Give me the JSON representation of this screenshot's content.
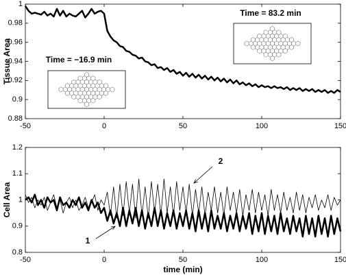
{
  "chart_data": [
    {
      "type": "line",
      "ylabel": "Tissue Area",
      "xlim": [
        -50,
        150
      ],
      "ylim": [
        0.88,
        1
      ],
      "xticks": [
        -50,
        0,
        50,
        100,
        150
      ],
      "yticks": [
        0.88,
        0.9,
        0.92,
        0.94,
        0.96,
        0.98,
        1
      ],
      "annotations": [
        "Time = −16.9 min",
        "Time = 83.2 min"
      ],
      "x": [
        -50,
        -48,
        -46,
        -44,
        -42,
        -40,
        -38,
        -36,
        -34,
        -32,
        -30,
        -28,
        -26,
        -24,
        -22,
        -20,
        -18,
        -16,
        -14,
        -12,
        -10,
        -8,
        -6,
        -4,
        -2,
        0,
        2,
        4,
        6,
        8,
        10,
        12,
        14,
        16,
        18,
        20,
        22,
        24,
        26,
        28,
        30,
        32,
        34,
        36,
        38,
        40,
        42,
        44,
        46,
        48,
        50,
        52,
        54,
        56,
        58,
        60,
        62,
        64,
        66,
        68,
        70,
        72,
        74,
        76,
        78,
        80,
        82,
        84,
        86,
        88,
        90,
        92,
        94,
        96,
        98,
        100,
        102,
        104,
        106,
        108,
        110,
        112,
        114,
        116,
        118,
        120,
        122,
        124,
        126,
        128,
        130,
        132,
        134,
        136,
        138,
        140,
        142,
        144,
        146,
        148,
        150
      ],
      "series": [
        {
          "color": "#000000",
          "linewidth": 2.5,
          "values": [
            0.998,
            0.993,
            0.99,
            0.991,
            0.99,
            0.989,
            0.992,
            0.988,
            0.99,
            0.987,
            0.995,
            0.988,
            0.993,
            0.987,
            0.99,
            0.988,
            0.987,
            0.99,
            0.993,
            0.986,
            0.99,
            0.995,
            0.99,
            0.992,
            0.993,
            0.99,
            0.972,
            0.966,
            0.962,
            0.96,
            0.956,
            0.955,
            0.951,
            0.95,
            0.947,
            0.946,
            0.943,
            0.944,
            0.94,
            0.939,
            0.936,
            0.937,
            0.933,
            0.934,
            0.931,
            0.933,
            0.929,
            0.931,
            0.927,
            0.929,
            0.925,
            0.928,
            0.924,
            0.927,
            0.923,
            0.926,
            0.922,
            0.925,
            0.921,
            0.924,
            0.92,
            0.923,
            0.919,
            0.922,
            0.918,
            0.921,
            0.917,
            0.92,
            0.916,
            0.918,
            0.915,
            0.917,
            0.914,
            0.916,
            0.913,
            0.915,
            0.913,
            0.914,
            0.912,
            0.914,
            0.912,
            0.913,
            0.911,
            0.913,
            0.91,
            0.912,
            0.91,
            0.912,
            0.909,
            0.911,
            0.909,
            0.911,
            0.908,
            0.91,
            0.908,
            0.91,
            0.907,
            0.909,
            0.907,
            0.91,
            0.908
          ]
        }
      ]
    },
    {
      "type": "line",
      "ylabel": "Cell Area",
      "xlabel": "time (min)",
      "xlim": [
        -50,
        150
      ],
      "ylim": [
        0.8,
        1.2
      ],
      "xticks": [
        -50,
        0,
        50,
        100,
        150
      ],
      "yticks": [
        0.8,
        0.9,
        1,
        1.1,
        1.2
      ],
      "x": [
        -50,
        -48,
        -46,
        -44,
        -42,
        -40,
        -38,
        -36,
        -34,
        -32,
        -30,
        -28,
        -26,
        -24,
        -22,
        -20,
        -18,
        -16,
        -14,
        -12,
        -10,
        -8,
        -6,
        -4,
        -2,
        0,
        2,
        4,
        6,
        8,
        10,
        12,
        14,
        16,
        18,
        20,
        22,
        24,
        26,
        28,
        30,
        32,
        34,
        36,
        38,
        40,
        42,
        44,
        46,
        48,
        50,
        52,
        54,
        56,
        58,
        60,
        62,
        64,
        66,
        68,
        70,
        72,
        74,
        76,
        78,
        80,
        82,
        84,
        86,
        88,
        90,
        92,
        94,
        96,
        98,
        100,
        102,
        104,
        106,
        108,
        110,
        112,
        114,
        116,
        118,
        120,
        122,
        124,
        126,
        128,
        130,
        132,
        134,
        136,
        138,
        140,
        142,
        144,
        146,
        148,
        150
      ],
      "series": [
        {
          "name": "1",
          "color": "#000000",
          "linewidth": 2.5,
          "values": [
            1.0,
            1.01,
            0.99,
            1.02,
            0.98,
            1.0,
            0.97,
            1.01,
            0.99,
            1.0,
            0.96,
            1.01,
            0.98,
            0.99,
            0.97,
            1.0,
            0.98,
            1.01,
            0.97,
            0.99,
            0.96,
            1.0,
            0.97,
            0.99,
            0.95,
            0.97,
            0.92,
            0.96,
            0.91,
            0.95,
            0.9,
            0.97,
            0.9,
            0.96,
            0.91,
            0.97,
            0.9,
            0.96,
            0.89,
            0.95,
            0.9,
            0.97,
            0.9,
            0.96,
            0.89,
            0.95,
            0.9,
            0.96,
            0.89,
            0.95,
            0.9,
            0.96,
            0.89,
            0.95,
            0.88,
            0.96,
            0.89,
            0.95,
            0.88,
            0.96,
            0.89,
            0.94,
            0.89,
            0.95,
            0.88,
            0.94,
            0.89,
            0.95,
            0.88,
            0.94,
            0.89,
            0.95,
            0.87,
            0.94,
            0.88,
            0.95,
            0.87,
            0.94,
            0.88,
            0.94,
            0.87,
            0.95,
            0.88,
            0.93,
            0.87,
            0.94,
            0.88,
            0.93,
            0.86,
            0.94,
            0.87,
            0.93,
            0.86,
            0.94,
            0.87,
            0.93,
            0.86,
            0.94,
            0.87,
            0.93,
            0.88
          ]
        },
        {
          "name": "2",
          "color": "#000000",
          "linewidth": 0.8,
          "values": [
            1.02,
            0.99,
            1.01,
            0.97,
            1.0,
            0.98,
            1.01,
            0.96,
            0.99,
            1.02,
            0.97,
            1.0,
            0.95,
            0.99,
            1.01,
            0.97,
            1.0,
            0.96,
            0.98,
            1.01,
            0.97,
            0.99,
            1.02,
            0.96,
            1.0,
            0.98,
            1.03,
            0.94,
            1.05,
            0.93,
            1.06,
            0.94,
            1.07,
            0.95,
            1.06,
            0.93,
            1.08,
            0.94,
            1.05,
            0.93,
            1.07,
            0.95,
            1.06,
            0.94,
            1.08,
            0.95,
            1.05,
            0.94,
            1.07,
            0.96,
            1.05,
            0.95,
            1.06,
            0.94,
            1.04,
            0.95,
            1.05,
            0.94,
            1.03,
            0.96,
            1.05,
            0.95,
            1.03,
            0.94,
            1.05,
            0.96,
            1.03,
            0.95,
            1.04,
            0.94,
            1.02,
            0.96,
            1.04,
            0.95,
            1.03,
            0.96,
            1.02,
            0.94,
            1.04,
            0.96,
            1.02,
            0.95,
            1.03,
            0.96,
            1.01,
            0.95,
            1.03,
            0.96,
            1.02,
            0.95,
            1.01,
            0.97,
            1.02,
            0.96,
            1.0,
            0.97,
            1.02,
            0.96,
            1.01,
            0.98,
            1.0
          ]
        }
      ]
    }
  ]
}
